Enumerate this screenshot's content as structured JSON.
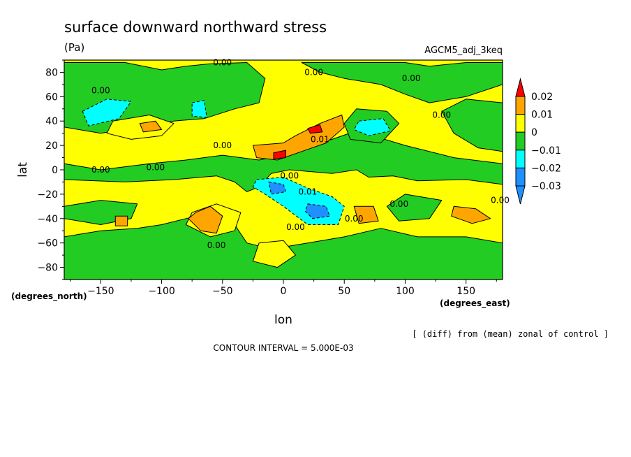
{
  "chart_data": {
    "type": "heatmap",
    "title": "surface downward northward stress",
    "units": "(Pa)",
    "dataset": "AGCM5_adj_3keq",
    "xlabel": "lon",
    "ylabel": "lat",
    "x_unit_label": "(degrees_east)",
    "y_unit_label": "(degrees_north)",
    "xlim": [
      -180,
      180
    ],
    "ylim": [
      -90,
      90
    ],
    "x_ticks": [
      -150,
      -100,
      -50,
      0,
      50,
      100,
      150
    ],
    "x_tick_labels": [
      "−150",
      "−100",
      "−50",
      "0",
      "50",
      "100",
      "150"
    ],
    "y_ticks": [
      -80,
      -60,
      -40,
      -20,
      0,
      20,
      40,
      60,
      80
    ],
    "y_tick_labels": [
      "−80",
      "−60",
      "−40",
      "−20",
      "0",
      "20",
      "40",
      "60",
      "80"
    ],
    "note": "[ (diff) from (mean) zonal of control ]",
    "contour_interval_text": "CONTOUR INTERVAL = 5.000E-03",
    "contour_interval": 0.005,
    "colorbar": {
      "levels": [
        -0.03,
        -0.02,
        -0.01,
        0,
        0.01,
        0.02
      ],
      "labels": [
        "−0.03",
        "−0.02",
        "−0.01",
        "0",
        "0.01",
        "0.02"
      ],
      "colors": [
        "#1e90ff",
        "#00ffff",
        "#22cc22",
        "#ffff00",
        "#ffa500",
        "#ff0000"
      ]
    },
    "background_level_color": "#ffff00",
    "regions": [
      {
        "level": "green",
        "points": [
          [
            -180,
            -8
          ],
          [
            -130,
            -10
          ],
          [
            -90,
            -8
          ],
          [
            -55,
            -5
          ],
          [
            -40,
            -10
          ],
          [
            -30,
            -18
          ],
          [
            -20,
            -14
          ],
          [
            -10,
            -3
          ],
          [
            5,
            0
          ],
          [
            40,
            -3
          ],
          [
            60,
            0
          ],
          [
            70,
            -6
          ],
          [
            90,
            -5
          ],
          [
            110,
            -9
          ],
          [
            150,
            -8
          ],
          [
            180,
            -12
          ],
          [
            180,
            5
          ],
          [
            140,
            10
          ],
          [
            100,
            20
          ],
          [
            60,
            32
          ],
          [
            40,
            25
          ],
          [
            20,
            20
          ],
          [
            0,
            12
          ],
          [
            -20,
            8
          ],
          [
            -50,
            12
          ],
          [
            -80,
            8
          ],
          [
            -110,
            5
          ],
          [
            -150,
            0
          ],
          [
            -180,
            5
          ]
        ]
      },
      {
        "level": "green",
        "points": [
          [
            -180,
            88
          ],
          [
            -130,
            88
          ],
          [
            -100,
            82
          ],
          [
            -80,
            85
          ],
          [
            -60,
            87
          ],
          [
            -30,
            88
          ],
          [
            -15,
            75
          ],
          [
            -20,
            55
          ],
          [
            -40,
            50
          ],
          [
            -65,
            42
          ],
          [
            -90,
            40
          ],
          [
            -120,
            35
          ],
          [
            -150,
            30
          ],
          [
            -180,
            35
          ]
        ]
      },
      {
        "level": "green",
        "points": [
          [
            15,
            88
          ],
          [
            100,
            88
          ],
          [
            120,
            85
          ],
          [
            150,
            88
          ],
          [
            180,
            88
          ],
          [
            180,
            70
          ],
          [
            150,
            60
          ],
          [
            120,
            55
          ],
          [
            100,
            62
          ],
          [
            80,
            70
          ],
          [
            50,
            75
          ],
          [
            30,
            80
          ]
        ]
      },
      {
        "level": "green",
        "points": [
          [
            60,
            50
          ],
          [
            85,
            48
          ],
          [
            95,
            38
          ],
          [
            80,
            22
          ],
          [
            55,
            25
          ],
          [
            50,
            38
          ]
        ]
      },
      {
        "level": "green",
        "points": [
          [
            180,
            15
          ],
          [
            160,
            18
          ],
          [
            140,
            30
          ],
          [
            130,
            48
          ],
          [
            150,
            58
          ],
          [
            180,
            55
          ]
        ]
      },
      {
        "level": "green",
        "points": [
          [
            -180,
            -55
          ],
          [
            -150,
            -50
          ],
          [
            -120,
            -48
          ],
          [
            -100,
            -45
          ],
          [
            -80,
            -40
          ],
          [
            -60,
            -35
          ],
          [
            -40,
            -45
          ],
          [
            -30,
            -60
          ],
          [
            -10,
            -65
          ],
          [
            20,
            -60
          ],
          [
            50,
            -55
          ],
          [
            80,
            -48
          ],
          [
            110,
            -55
          ],
          [
            150,
            -55
          ],
          [
            180,
            -60
          ],
          [
            180,
            -90
          ],
          [
            -180,
            -90
          ]
        ]
      },
      {
        "level": "green",
        "points": [
          [
            -180,
            -30
          ],
          [
            -150,
            -25
          ],
          [
            -120,
            -28
          ],
          [
            -125,
            -40
          ],
          [
            -150,
            -45
          ],
          [
            -180,
            -40
          ]
        ]
      },
      {
        "level": "green",
        "points": [
          [
            100,
            -20
          ],
          [
            130,
            -25
          ],
          [
            120,
            -40
          ],
          [
            95,
            -42
          ],
          [
            85,
            -30
          ]
        ]
      },
      {
        "level": "yellow",
        "points": [
          [
            -140,
            40
          ],
          [
            -110,
            45
          ],
          [
            -90,
            38
          ],
          [
            -100,
            28
          ],
          [
            -125,
            25
          ],
          [
            -145,
            30
          ]
        ]
      },
      {
        "level": "yellow",
        "points": [
          [
            -60,
            -55
          ],
          [
            -40,
            -50
          ],
          [
            -35,
            -35
          ],
          [
            -55,
            -28
          ],
          [
            -75,
            -35
          ],
          [
            -80,
            -45
          ]
        ]
      },
      {
        "level": "yellow",
        "points": [
          [
            -20,
            -60
          ],
          [
            0,
            -58
          ],
          [
            10,
            -70
          ],
          [
            -5,
            -80
          ],
          [
            -25,
            -75
          ]
        ]
      },
      {
        "level": "cyan",
        "points": [
          [
            -165,
            48
          ],
          [
            -145,
            58
          ],
          [
            -125,
            56
          ],
          [
            -135,
            42
          ],
          [
            -160,
            36
          ]
        ]
      },
      {
        "level": "cyan",
        "points": [
          [
            -75,
            55
          ],
          [
            -65,
            57
          ],
          [
            -63,
            43
          ],
          [
            -75,
            44
          ]
        ]
      },
      {
        "level": "cyan",
        "points": [
          [
            62,
            40
          ],
          [
            82,
            42
          ],
          [
            88,
            32
          ],
          [
            70,
            28
          ],
          [
            58,
            33
          ]
        ]
      },
      {
        "level": "cyan",
        "points": [
          [
            -22,
            -8
          ],
          [
            0,
            -6
          ],
          [
            20,
            -15
          ],
          [
            40,
            -22
          ],
          [
            50,
            -30
          ],
          [
            45,
            -45
          ],
          [
            20,
            -45
          ],
          [
            0,
            -30
          ],
          [
            -15,
            -20
          ],
          [
            -25,
            -14
          ]
        ]
      },
      {
        "level": "blue",
        "points": [
          [
            -12,
            -10
          ],
          [
            0,
            -12
          ],
          [
            2,
            -18
          ],
          [
            -10,
            -20
          ]
        ]
      },
      {
        "level": "blue",
        "points": [
          [
            20,
            -28
          ],
          [
            35,
            -30
          ],
          [
            38,
            -38
          ],
          [
            24,
            -40
          ],
          [
            18,
            -34
          ]
        ]
      },
      {
        "level": "orange",
        "points": [
          [
            -118,
            38
          ],
          [
            -105,
            40
          ],
          [
            -100,
            33
          ],
          [
            -115,
            31
          ]
        ]
      },
      {
        "level": "orange",
        "points": [
          [
            -25,
            20
          ],
          [
            0,
            22
          ],
          [
            10,
            28
          ],
          [
            30,
            38
          ],
          [
            48,
            45
          ],
          [
            50,
            35
          ],
          [
            35,
            22
          ],
          [
            15,
            15
          ],
          [
            -5,
            8
          ],
          [
            -22,
            10
          ]
        ]
      },
      {
        "level": "orange",
        "points": [
          [
            -72,
            -35
          ],
          [
            -60,
            -30
          ],
          [
            -50,
            -38
          ],
          [
            -55,
            -52
          ],
          [
            -68,
            -50
          ],
          [
            -78,
            -40
          ]
        ]
      },
      {
        "level": "orange",
        "points": [
          [
            -138,
            -38
          ],
          [
            -128,
            -38
          ],
          [
            -128,
            -46
          ],
          [
            -138,
            -46
          ]
        ]
      },
      {
        "level": "orange",
        "points": [
          [
            58,
            -30
          ],
          [
            74,
            -30
          ],
          [
            78,
            -42
          ],
          [
            62,
            -44
          ]
        ]
      },
      {
        "level": "orange",
        "points": [
          [
            140,
            -30
          ],
          [
            158,
            -32
          ],
          [
            170,
            -40
          ],
          [
            155,
            -44
          ],
          [
            138,
            -38
          ]
        ]
      },
      {
        "level": "red",
        "points": [
          [
            -8,
            14
          ],
          [
            2,
            16
          ],
          [
            2,
            10
          ],
          [
            -8,
            9
          ]
        ]
      },
      {
        "level": "red",
        "points": [
          [
            20,
            34
          ],
          [
            30,
            37
          ],
          [
            32,
            31
          ],
          [
            22,
            30
          ]
        ]
      }
    ],
    "contour_labels": [
      {
        "text": "0.00",
        "lon": -55,
        "lat": -62
      },
      {
        "text": "0.00",
        "lon": -150,
        "lat": 0
      },
      {
        "text": "0.00",
        "lon": -105,
        "lat": 2
      },
      {
        "text": "0.00",
        "lon": -150,
        "lat": 65
      },
      {
        "text": "0.00",
        "lon": -50,
        "lat": 88
      },
      {
        "text": "0.00",
        "lon": 25,
        "lat": 80
      },
      {
        "text": "0.00",
        "lon": 105,
        "lat": 75
      },
      {
        "text": "0.00",
        "lon": 130,
        "lat": 45
      },
      {
        "text": "0.00",
        "lon": -50,
        "lat": 20
      },
      {
        "text": "0.00",
        "lon": 5,
        "lat": -5
      },
      {
        "text": "0.00",
        "lon": 10,
        "lat": -47
      },
      {
        "text": "0.00",
        "lon": 58,
        "lat": -40
      },
      {
        "text": "0.00",
        "lon": 95,
        "lat": -28
      },
      {
        "text": "0.00",
        "lon": 178,
        "lat": -25
      },
      {
        "text": "0.01",
        "lon": 30,
        "lat": 25
      },
      {
        "text": "0.01",
        "lon": 20,
        "lat": -18
      }
    ]
  }
}
